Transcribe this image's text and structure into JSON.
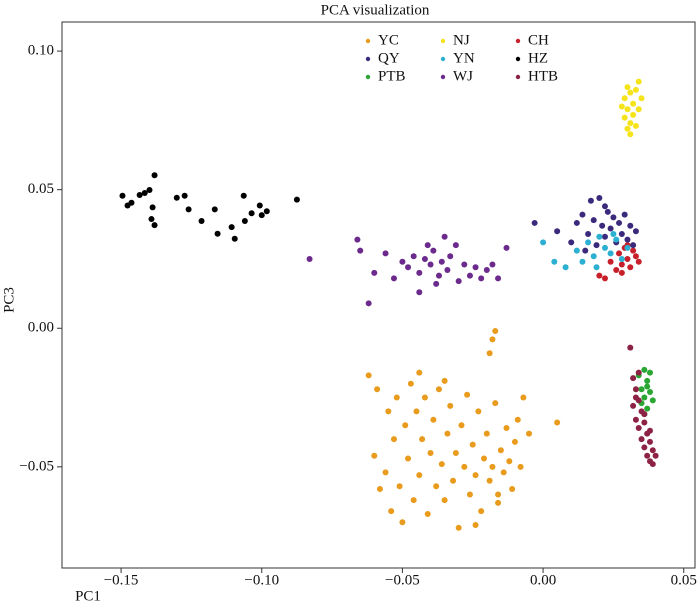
{
  "chart_data": {
    "type": "scatter",
    "title": "PCA visualization",
    "x_label": "PC1",
    "y_label": "PC3",
    "xlim": [
      -0.171,
      0.054
    ],
    "ylim": [
      -0.0865,
      0.1105
    ],
    "xticks": [
      {
        "value": -0.15,
        "label": "−0.15"
      },
      {
        "value": -0.1,
        "label": "−0.10"
      },
      {
        "value": -0.05,
        "label": "−0.05"
      },
      {
        "value": 0,
        "label": "0.00"
      },
      {
        "value": 0.05,
        "label": "0.05"
      }
    ],
    "yticks": [
      {
        "value": -0.05,
        "label": "−0.05"
      },
      {
        "value": 0,
        "label": "0.00"
      },
      {
        "value": 0.05,
        "label": "0.05"
      },
      {
        "value": 0.1,
        "label": "0.10"
      }
    ],
    "grid": false,
    "series": [
      {
        "name": "YC",
        "color": "#e89b1c",
        "x": [
          -0.062,
          -0.059,
          -0.06,
          -0.058,
          -0.056,
          -0.055,
          -0.054,
          -0.053,
          -0.052,
          -0.051,
          -0.05,
          -0.049,
          -0.048,
          -0.047,
          -0.046,
          -0.045,
          -0.044,
          -0.043,
          -0.042,
          -0.041,
          -0.04,
          -0.039,
          -0.038,
          -0.037,
          -0.036,
          -0.035,
          -0.034,
          -0.033,
          -0.032,
          -0.031,
          -0.03,
          -0.029,
          -0.028,
          -0.027,
          -0.026,
          -0.025,
          -0.024,
          -0.023,
          -0.022,
          -0.021,
          -0.02,
          -0.019,
          -0.018,
          -0.017,
          -0.016,
          -0.015,
          -0.014,
          -0.013,
          -0.012,
          -0.011,
          -0.01,
          -0.009,
          -0.008,
          -0.007,
          -0.005,
          0.005,
          -0.017,
          -0.018,
          -0.019,
          -0.016,
          -0.024,
          -0.035,
          -0.044
        ],
        "values": [
          -0.017,
          -0.022,
          -0.046,
          -0.058,
          -0.052,
          -0.03,
          -0.066,
          -0.04,
          -0.025,
          -0.057,
          -0.07,
          -0.035,
          -0.047,
          -0.02,
          -0.062,
          -0.03,
          -0.053,
          -0.04,
          -0.025,
          -0.067,
          -0.045,
          -0.033,
          -0.057,
          -0.022,
          -0.049,
          -0.062,
          -0.038,
          -0.028,
          -0.055,
          -0.045,
          -0.072,
          -0.035,
          -0.05,
          -0.024,
          -0.06,
          -0.042,
          -0.053,
          -0.03,
          -0.066,
          -0.047,
          -0.038,
          -0.055,
          -0.05,
          -0.027,
          -0.06,
          -0.044,
          -0.052,
          -0.036,
          -0.048,
          -0.058,
          -0.041,
          -0.033,
          -0.05,
          -0.025,
          -0.038,
          -0.034,
          -0.001,
          -0.004,
          -0.009,
          -0.063,
          -0.071,
          -0.019,
          -0.016
        ]
      },
      {
        "name": "NJ",
        "color": "#f5e31c",
        "x": [
          0.028,
          0.029,
          0.029,
          0.03,
          0.03,
          0.031,
          0.031,
          0.032,
          0.032,
          0.033,
          0.033,
          0.034,
          0.034,
          0.035,
          0.031,
          0.03
        ],
        "values": [
          0.08,
          0.076,
          0.083,
          0.072,
          0.079,
          0.085,
          0.074,
          0.081,
          0.077,
          0.086,
          0.073,
          0.089,
          0.079,
          0.083,
          0.07,
          0.087
        ]
      },
      {
        "name": "CH",
        "color": "#c8202a",
        "x": [
          0.02,
          0.022,
          0.024,
          0.026,
          0.027,
          0.028,
          0.029,
          0.03,
          0.031,
          0.032,
          0.033,
          0.034,
          0.028,
          0.03
        ],
        "values": [
          0.019,
          0.018,
          0.024,
          0.021,
          0.027,
          0.023,
          0.029,
          0.025,
          0.022,
          0.028,
          0.026,
          0.024,
          0.02,
          0.03
        ]
      },
      {
        "name": "QY",
        "color": "#3b2a7c",
        "x": [
          -0.003,
          0.005,
          0.01,
          0.012,
          0.014,
          0.016,
          0.017,
          0.018,
          0.019,
          0.02,
          0.021,
          0.022,
          0.023,
          0.024,
          0.025,
          0.026,
          0.027,
          0.028,
          0.029,
          0.03,
          0.031,
          0.032,
          0.033,
          0.015,
          0.022
        ],
        "values": [
          0.038,
          0.035,
          0.031,
          0.038,
          0.041,
          0.034,
          0.046,
          0.039,
          0.03,
          0.047,
          0.037,
          0.033,
          0.042,
          0.036,
          0.04,
          0.031,
          0.038,
          0.034,
          0.041,
          0.032,
          0.037,
          0.03,
          0.035,
          0.028,
          0.044
        ]
      },
      {
        "name": "YN",
        "color": "#2bb0d2",
        "x": [
          0.0,
          0.004,
          0.008,
          0.012,
          0.014,
          0.016,
          0.018,
          0.02,
          0.022,
          0.024,
          0.026,
          0.028,
          0.03,
          0.019,
          0.025
        ],
        "values": [
          0.031,
          0.024,
          0.022,
          0.028,
          0.024,
          0.031,
          0.026,
          0.033,
          0.029,
          0.027,
          0.032,
          0.025,
          0.029,
          0.022,
          0.034
        ]
      },
      {
        "name": "HZ",
        "color": "#000000",
        "x": [
          -0.1495,
          -0.1477,
          -0.1463,
          -0.1434,
          -0.1416,
          -0.1399,
          -0.1381,
          -0.1388,
          -0.1381,
          -0.1392,
          -0.1302,
          -0.1274,
          -0.126,
          -0.1214,
          -0.1167,
          -0.1157,
          -0.1107,
          -0.1096,
          -0.1064,
          -0.106,
          -0.1036,
          -0.1007,
          -0.1,
          -0.0982,
          -0.0875
        ],
        "values": [
          0.0478,
          0.0443,
          0.0453,
          0.0481,
          0.0488,
          0.0499,
          0.0552,
          0.0436,
          0.0372,
          0.0394,
          0.0471,
          0.0478,
          0.0429,
          0.0387,
          0.0429,
          0.0341,
          0.0365,
          0.0323,
          0.0478,
          0.0387,
          0.0415,
          0.0443,
          0.0408,
          0.0422,
          0.0464
        ]
      },
      {
        "name": "PTB",
        "color": "#2aa632",
        "x": [
          0.034,
          0.035,
          0.035,
          0.036,
          0.036,
          0.037,
          0.037,
          0.038,
          0.038,
          0.039,
          0.036,
          0.037
        ],
        "values": [
          -0.017,
          -0.022,
          -0.027,
          -0.015,
          -0.025,
          -0.019,
          -0.029,
          -0.023,
          -0.016,
          -0.026,
          -0.031,
          -0.021
        ]
      },
      {
        "name": "WJ",
        "color": "#6b2a8c",
        "x": [
          -0.083,
          -0.066,
          -0.065,
          -0.062,
          -0.06,
          -0.056,
          -0.053,
          -0.05,
          -0.048,
          -0.046,
          -0.044,
          -0.042,
          -0.04,
          -0.039,
          -0.037,
          -0.036,
          -0.034,
          -0.033,
          -0.031,
          -0.03,
          -0.028,
          -0.026,
          -0.024,
          -0.022,
          -0.02,
          -0.018,
          -0.016,
          -0.013,
          -0.044,
          -0.038,
          -0.041,
          -0.035
        ],
        "values": [
          0.025,
          0.032,
          0.028,
          0.009,
          0.02,
          0.027,
          0.018,
          0.024,
          0.022,
          0.026,
          0.02,
          0.025,
          0.023,
          0.028,
          0.019,
          0.024,
          0.021,
          0.026,
          0.03,
          0.017,
          0.023,
          0.019,
          0.022,
          0.018,
          0.021,
          0.023,
          0.018,
          0.029,
          0.013,
          0.016,
          0.03,
          0.033
        ]
      },
      {
        "name": "HTB",
        "color": "#8c2345",
        "x": [
          0.031,
          0.032,
          0.032,
          0.033,
          0.033,
          0.034,
          0.034,
          0.035,
          0.035,
          0.036,
          0.036,
          0.037,
          0.037,
          0.038,
          0.038,
          0.039,
          0.039,
          0.04,
          0.034,
          0.036,
          0.038,
          0.033
        ],
        "values": [
          -0.007,
          -0.018,
          -0.028,
          -0.022,
          -0.033,
          -0.026,
          -0.036,
          -0.03,
          -0.04,
          -0.034,
          -0.043,
          -0.038,
          -0.046,
          -0.041,
          -0.048,
          -0.044,
          -0.049,
          -0.046,
          -0.016,
          -0.031,
          -0.037,
          -0.025
        ]
      }
    ]
  }
}
